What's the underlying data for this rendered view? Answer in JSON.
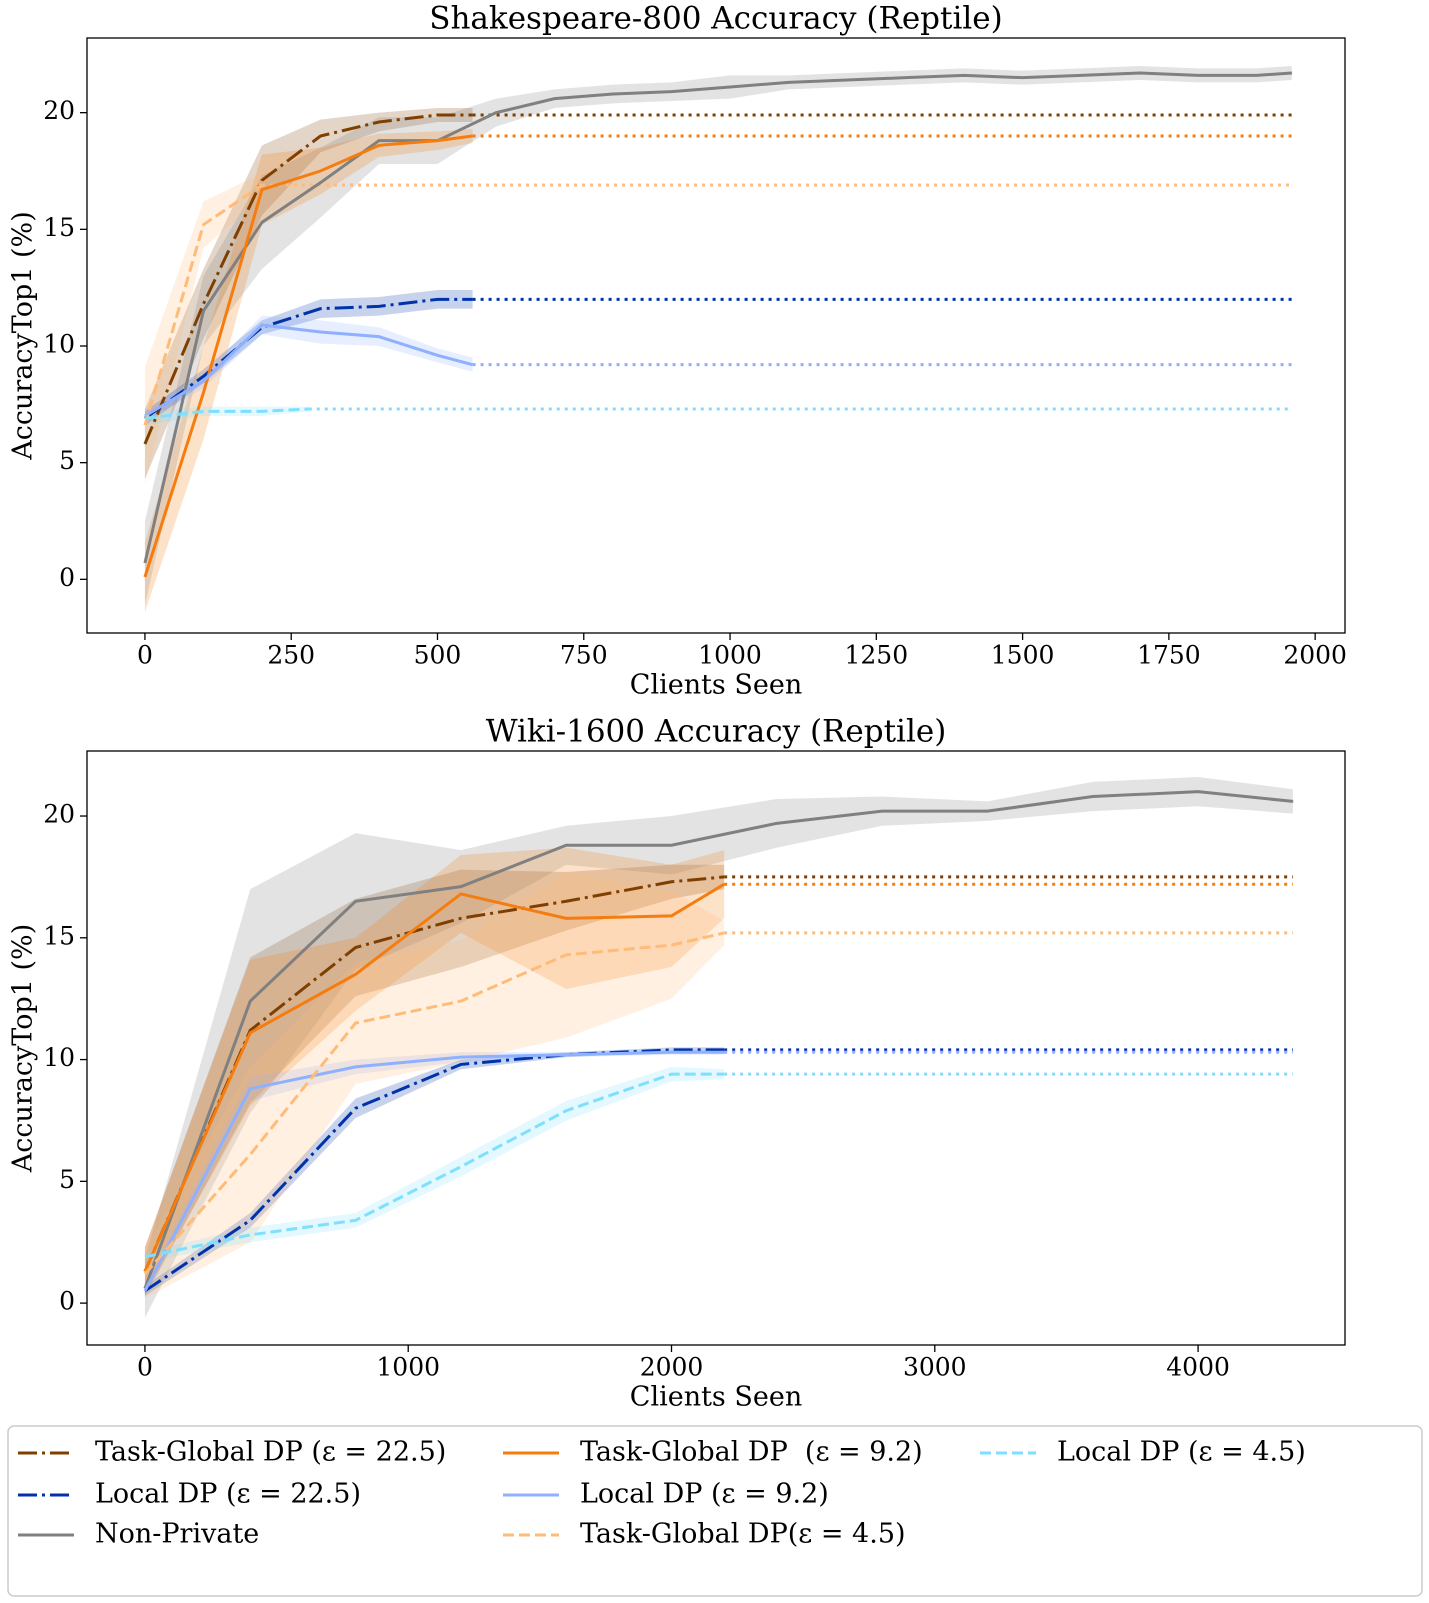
{
  "chart_data": [
    {
      "type": "line",
      "title": "Shakespeare-800 Accuracy (Reptile)",
      "xlabel": "Clients Seen",
      "ylabel": "AccuracyTop1 (%)",
      "xlim": [
        -99,
        2051
      ],
      "ylim": [
        -2.3,
        23.2
      ],
      "xticks": [
        0,
        250,
        500,
        750,
        1000,
        1250,
        1500,
        1750,
        2000
      ],
      "yticks": [
        0,
        5,
        10,
        15,
        20
      ],
      "series": [
        {
          "name": "Task-Global DP (ε = 22.5)",
          "color": "#7f3f00",
          "style": "dashdot",
          "x": [
            0,
            100,
            200,
            300,
            400,
            500,
            560
          ],
          "values": [
            5.8,
            11.8,
            17.1,
            19,
            19.6,
            19.9,
            19.9
          ],
          "errors": [
            1.5,
            1.5,
            1.5,
            0.7,
            0.4,
            0.3,
            0.3
          ]
        },
        {
          "name": "Local DP (ε = 22.5)",
          "color": "#0033aa",
          "style": "dashdot",
          "x": [
            0,
            100,
            200,
            300,
            400,
            500,
            560
          ],
          "values": [
            6.9,
            8.7,
            10.8,
            11.6,
            11.7,
            12,
            12
          ],
          "errors": [
            0.3,
            0.3,
            0.3,
            0.4,
            0.4,
            0.4,
            0.4
          ]
        },
        {
          "name": "Non-Private",
          "color": "#808080",
          "style": "solid",
          "x": [
            0,
            100,
            200,
            300,
            400,
            500,
            600,
            700,
            800,
            900,
            1000,
            1100,
            1200,
            1300,
            1400,
            1500,
            1600,
            1700,
            1800,
            1900,
            1960
          ],
          "values": [
            0.7,
            11.5,
            15.3,
            17,
            18.8,
            18.8,
            20,
            20.6,
            20.8,
            20.9,
            21.1,
            21.3,
            21.4,
            21.5,
            21.6,
            21.5,
            21.6,
            21.7,
            21.6,
            21.6,
            21.7
          ],
          "errors": [
            1.8,
            1.5,
            2,
            1.5,
            1,
            1,
            0.6,
            0.4,
            0.4,
            0.4,
            0.5,
            0.3,
            0.3,
            0.3,
            0.3,
            0.3,
            0.3,
            0.3,
            0.3,
            0.3,
            0.3
          ]
        },
        {
          "name": "Task-Global DP  (ε = 9.2)",
          "color": "#f57c0e",
          "style": "solid",
          "x": [
            0,
            100,
            200,
            300,
            400,
            500,
            560
          ],
          "values": [
            0.1,
            8,
            16.7,
            17.5,
            18.6,
            18.8,
            19
          ],
          "errors": [
            1.5,
            2,
            1.5,
            1,
            0.5,
            0.4,
            0.3
          ]
        },
        {
          "name": "Local DP (ε = 9.2)",
          "color": "#8fb0ff",
          "style": "solid",
          "x": [
            0,
            100,
            200,
            300,
            400,
            500,
            560
          ],
          "values": [
            7,
            8.5,
            10.9,
            10.6,
            10.4,
            9.6,
            9.2
          ],
          "errors": [
            0.3,
            0.3,
            0.4,
            0.5,
            0.4,
            0.3,
            0.3
          ]
        },
        {
          "name": "Task-Global DP(ε = 4.5)",
          "color": "#ffbb78",
          "style": "dashed",
          "x": [
            0,
            100,
            200
          ],
          "values": [
            6.6,
            15.2,
            16.9
          ],
          "errors": [
            2.5,
            1,
            0.5
          ]
        },
        {
          "name": "Local DP (ε = 4.5)",
          "color": "#7fdfff",
          "style": "dashed",
          "x": [
            0,
            100,
            200,
            280
          ],
          "values": [
            6.9,
            7.2,
            7.2,
            7.3
          ],
          "errors": [
            0.3,
            0.2,
            0.2,
            0.1
          ]
        }
      ]
    },
    {
      "type": "line",
      "title": "Wiki-1600 Accuracy (Reptile)",
      "xlabel": "Clients Seen",
      "ylabel": "AccuracyTop1 (%)",
      "xlim": [
        -220,
        4558
      ],
      "ylim": [
        -1.72,
        22.67
      ],
      "xticks": [
        0,
        1000,
        2000,
        3000,
        4000
      ],
      "yticks": [
        0,
        5,
        10,
        15,
        20
      ],
      "series": [
        {
          "color": "#7f3f00",
          "style": "dashdot",
          "x": [
            0,
            400,
            800,
            1200,
            1600,
            2000,
            2200
          ],
          "values": [
            1.3,
            11.2,
            14.6,
            15.8,
            16.5,
            17.3,
            17.5
          ],
          "errors": [
            1,
            3,
            2,
            2,
            1.2,
            0.7,
            0.5
          ]
        },
        {
          "color": "#0033aa",
          "style": "dashdot",
          "x": [
            0,
            400,
            800,
            1200,
            1600,
            2000,
            2200
          ],
          "values": [
            0.5,
            3.4,
            8,
            9.8,
            10.2,
            10.4,
            10.4
          ],
          "errors": [
            0.2,
            0.3,
            0.4,
            0.2,
            0.1,
            0.1,
            0.1
          ]
        },
        {
          "color": "#808080",
          "style": "solid",
          "x": [
            0,
            400,
            800,
            1200,
            1600,
            2000,
            2400,
            2800,
            3200,
            3600,
            4000,
            4360
          ],
          "values": [
            0.6,
            12.4,
            16.5,
            17.1,
            18.8,
            18.8,
            19.7,
            20.2,
            20.2,
            20.8,
            21,
            20.6
          ],
          "errors": [
            1.2,
            4.6,
            2.8,
            1.5,
            0.8,
            1.2,
            1,
            0.6,
            0.4,
            0.6,
            0.6,
            0.5
          ]
        },
        {
          "color": "#f57c0e",
          "style": "solid",
          "x": [
            0,
            400,
            800,
            1200,
            1600,
            2000,
            2200
          ],
          "values": [
            1.3,
            11.1,
            13.5,
            16.8,
            15.8,
            15.9,
            17.2
          ],
          "errors": [
            1,
            3,
            1.5,
            1.6,
            2.9,
            2.1,
            1.4
          ]
        },
        {
          "color": "#8fb0ff",
          "style": "solid",
          "x": [
            0,
            400,
            800,
            1200,
            1600,
            2000,
            2200
          ],
          "values": [
            0.5,
            8.8,
            9.7,
            10.1,
            10.2,
            10.3,
            10.3
          ],
          "errors": [
            0.3,
            0.5,
            0.3,
            0.2,
            0.1,
            0.1,
            0.1
          ]
        },
        {
          "color": "#ffbb78",
          "style": "dashed",
          "x": [
            0,
            400,
            800,
            1200,
            1600,
            2000,
            2200
          ],
          "values": [
            1.2,
            6.1,
            11.5,
            12.4,
            14.3,
            14.7,
            15.2
          ],
          "errors": [
            1,
            3.6,
            2.5,
            2.5,
            3.4,
            2.2,
            0.5
          ]
        },
        {
          "color": "#7fdfff",
          "style": "dashed",
          "x": [
            0,
            400,
            800,
            1200,
            1600,
            2000,
            2200
          ],
          "values": [
            1.9,
            2.8,
            3.4,
            5.6,
            7.9,
            9.4,
            9.4
          ],
          "errors": [
            0.2,
            0.3,
            0.3,
            0.4,
            0.4,
            0.3,
            0.2
          ]
        }
      ]
    }
  ]
}
